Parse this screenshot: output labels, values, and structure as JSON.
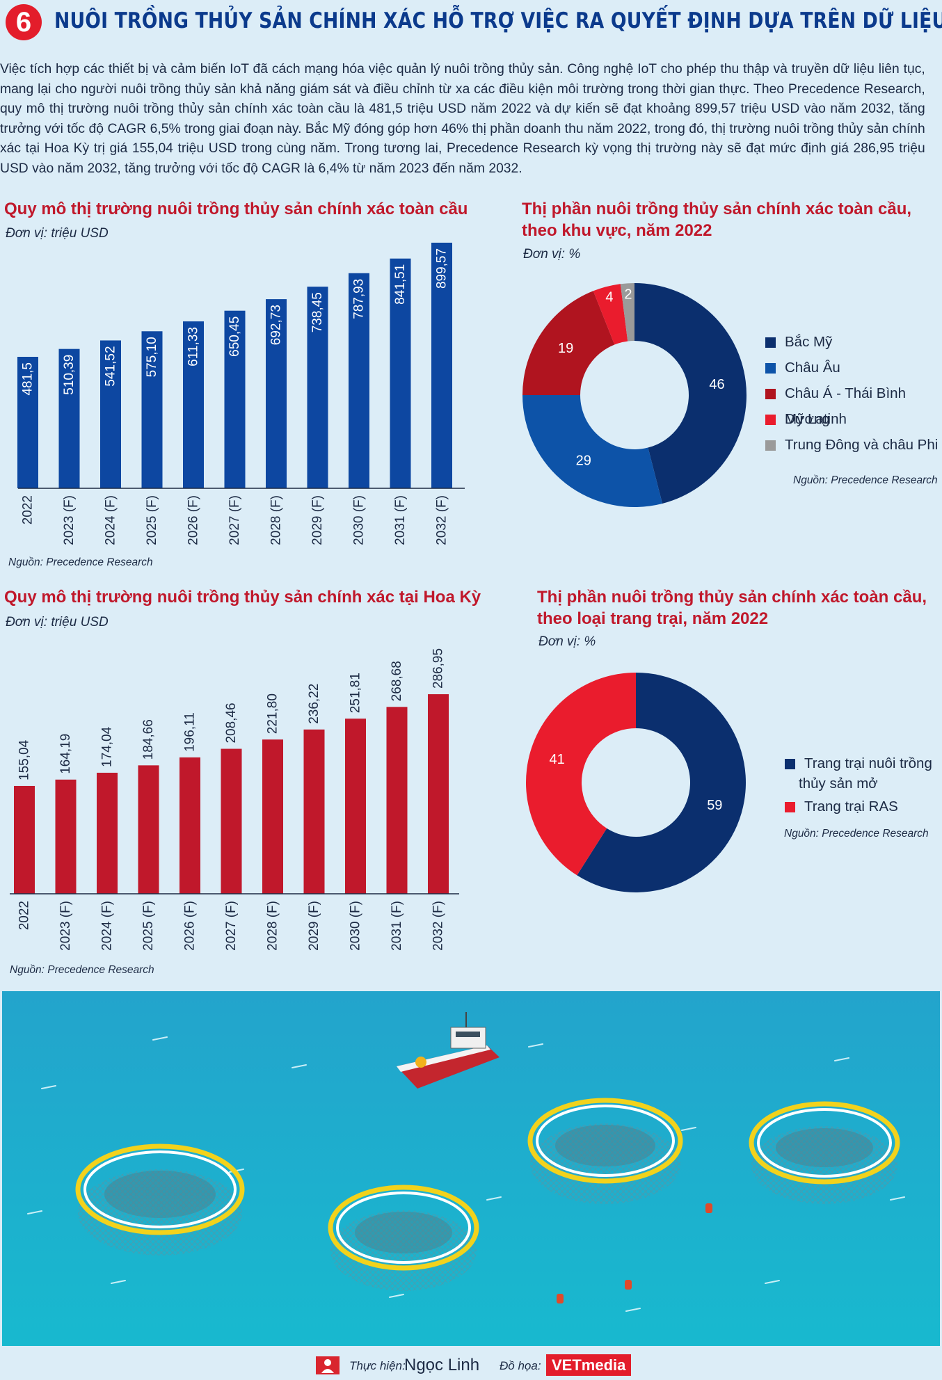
{
  "header": {
    "number": "6",
    "title": "NUÔI TRỒNG THỦY SẢN CHÍNH XÁC HỖ TRỢ VIỆC RA QUYẾT ĐỊNH DỰA TRÊN DỮ LIỆU"
  },
  "intro": "Việc tích hợp các thiết bị và cảm biến IoT đã cách mạng hóa việc quản lý nuôi trồng thủy sản. Công nghệ IoT cho phép thu thập và truyền dữ liệu liên tục, mang lại cho người nuôi trồng thủy sản khả năng giám sát và điều chỉnh từ xa các điều kiện môi trường trong thời gian thực. Theo Precedence Research, quy mô thị trường nuôi trồng thủy sản chính xác toàn cầu là 481,5 triệu USD năm 2022 và dự kiến sẽ đạt khoảng 899,57 triệu USD vào năm 2032, tăng trưởng với tốc độ CAGR 6,5% trong giai đoạn này. Bắc Mỹ đóng góp hơn 46% thị phần doanh thu năm 2022, trong đó, thị trường nuôi trồng thủy sản chính xác tại Hoa Kỳ trị giá 155,04 triệu USD trong cùng năm. Trong tương lai, Precedence Research kỳ vọng thị trường này sẽ đạt mức định giá 286,95 triệu USD vào năm 2032, tăng trưởng với tốc độ CAGR là 6,4% từ năm 2023 đến năm 2032.",
  "chart_data": [
    {
      "type": "bar",
      "title": "Quy mô thị trường nuôi trồng thủy sản chính xác toàn cầu",
      "unit": "Đơn vị: triệu USD",
      "source": "Nguồn: Precedence Research",
      "categories": [
        "2022",
        "2023 (F)",
        "2024 (F)",
        "2025 (F)",
        "2026 (F)",
        "2027 (F)",
        "2028 (F)",
        "2029 (F)",
        "2030 (F)",
        "2031 (F)",
        "2032 (F)"
      ],
      "values": [
        481.5,
        510.39,
        541.52,
        575.1,
        611.33,
        650.45,
        692.73,
        738.45,
        787.93,
        841.51,
        899.57
      ],
      "labels": [
        "481,5",
        "510,39",
        "541,52",
        "575,10",
        "611,33",
        "650,45",
        "692,73",
        "738,45",
        "787,93",
        "841,51",
        "899,57"
      ],
      "color": "#0d47a1"
    },
    {
      "type": "pie",
      "title": "Thị phần nuôi trồng thủy sản chính xác toàn cầu, theo khu vực, năm 2022",
      "unit": "Đơn vị: %",
      "source": "Nguồn: Precedence Research",
      "slices": [
        {
          "name": "Bắc Mỹ",
          "value": 46,
          "label": "46",
          "color": "#0b2f6e"
        },
        {
          "name": "Châu Âu",
          "value": 29,
          "label": "29",
          "color": "#0d53a8"
        },
        {
          "name": "Châu Á - Thái Bình Dương",
          "value": 19,
          "label": "19",
          "color": "#b0141f"
        },
        {
          "name": "Mỹ Latinh",
          "value": 4,
          "label": "4",
          "color": "#ea1c2d"
        },
        {
          "name": "Trung Đông và châu Phi",
          "value": 2,
          "label": "2",
          "color": "#9a9a9a"
        }
      ]
    },
    {
      "type": "bar",
      "title": "Quy mô thị trường nuôi trồng thủy sản chính xác tại Hoa Kỳ",
      "unit": "Đơn vị: triệu USD",
      "source": "Nguồn: Precedence Research",
      "categories": [
        "2022",
        "2023 (F)",
        "2024 (F)",
        "2025 (F)",
        "2026 (F)",
        "2027 (F)",
        "2028 (F)",
        "2029 (F)",
        "2030 (F)",
        "2031 (F)",
        "2032 (F)"
      ],
      "values": [
        155.04,
        164.19,
        174.04,
        184.66,
        196.11,
        208.46,
        221.8,
        236.22,
        251.81,
        268.68,
        286.95
      ],
      "labels": [
        "155,04",
        "164,19",
        "174,04",
        "184,66",
        "196,11",
        "208,46",
        "221,80",
        "236,22",
        "251,81",
        "268,68",
        "286,95"
      ],
      "color": "#c0182b"
    },
    {
      "type": "pie",
      "title": "Thị phần nuôi trồng thủy sản chính xác toàn cầu, theo loại trang trại, năm 2022",
      "unit": "Đơn vị: %",
      "source": "Nguồn: Precedence Research",
      "slices": [
        {
          "name": "Trang trại nuôi trồng thủy sản mở",
          "value": 59,
          "label": "59",
          "color": "#0b2f6e"
        },
        {
          "name": "Trang trại RAS",
          "value": 41,
          "label": "41",
          "color": "#ea1c2d"
        }
      ]
    }
  ],
  "titles": {
    "c1": "Quy mô thị trường nuôi trồng thủy sản chính xác toàn cầu",
    "c2a": "Thị phần nuôi trồng thủy sản chính xác toàn cầu,",
    "c2b": "theo khu vực, năm 2022",
    "c3": "Quy mô thị trường nuôi trồng thủy sản chính xác tại Hoa Kỳ",
    "c4a": "Thị phần nuôi trồng thủy sản chính xác toàn cầu,",
    "c4b": "theo loại trang trại, năm 2022"
  },
  "legend4": {
    "a1": "Trang trại nuôi trồng",
    "a2": "thủy sản mở"
  },
  "footer": {
    "author_label": "Thực hiện:",
    "author": "Ngọc Linh",
    "graphics_label": "Đồ họa:",
    "graphics": "VETmedia"
  }
}
